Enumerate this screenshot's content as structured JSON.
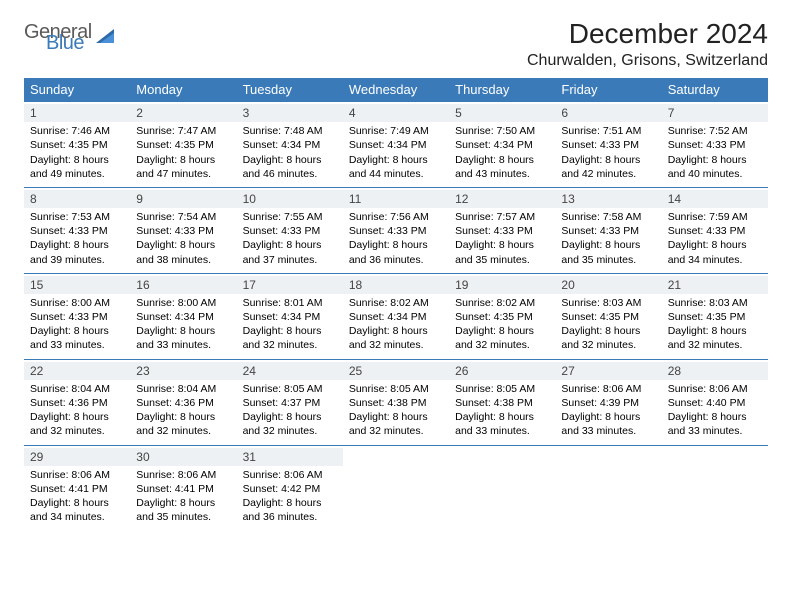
{
  "logo": {
    "word1": "General",
    "word2": "Blue"
  },
  "title": "December 2024",
  "location": "Churwalden, Grisons, Switzerland",
  "colors": {
    "header_bg": "#3a7ab8",
    "header_text": "#ffffff",
    "daynum_bg": "#eef1f3",
    "rule": "#3a7ab8",
    "logo_gray": "#5a5a5a",
    "logo_blue": "#3a7ab8"
  },
  "day_headers": [
    "Sunday",
    "Monday",
    "Tuesday",
    "Wednesday",
    "Thursday",
    "Friday",
    "Saturday"
  ],
  "weeks": [
    [
      {
        "n": "1",
        "sunrise": "7:46 AM",
        "sunset": "4:35 PM",
        "dl1": "Daylight: 8 hours",
        "dl2": "and 49 minutes."
      },
      {
        "n": "2",
        "sunrise": "7:47 AM",
        "sunset": "4:35 PM",
        "dl1": "Daylight: 8 hours",
        "dl2": "and 47 minutes."
      },
      {
        "n": "3",
        "sunrise": "7:48 AM",
        "sunset": "4:34 PM",
        "dl1": "Daylight: 8 hours",
        "dl2": "and 46 minutes."
      },
      {
        "n": "4",
        "sunrise": "7:49 AM",
        "sunset": "4:34 PM",
        "dl1": "Daylight: 8 hours",
        "dl2": "and 44 minutes."
      },
      {
        "n": "5",
        "sunrise": "7:50 AM",
        "sunset": "4:34 PM",
        "dl1": "Daylight: 8 hours",
        "dl2": "and 43 minutes."
      },
      {
        "n": "6",
        "sunrise": "7:51 AM",
        "sunset": "4:33 PM",
        "dl1": "Daylight: 8 hours",
        "dl2": "and 42 minutes."
      },
      {
        "n": "7",
        "sunrise": "7:52 AM",
        "sunset": "4:33 PM",
        "dl1": "Daylight: 8 hours",
        "dl2": "and 40 minutes."
      }
    ],
    [
      {
        "n": "8",
        "sunrise": "7:53 AM",
        "sunset": "4:33 PM",
        "dl1": "Daylight: 8 hours",
        "dl2": "and 39 minutes."
      },
      {
        "n": "9",
        "sunrise": "7:54 AM",
        "sunset": "4:33 PM",
        "dl1": "Daylight: 8 hours",
        "dl2": "and 38 minutes."
      },
      {
        "n": "10",
        "sunrise": "7:55 AM",
        "sunset": "4:33 PM",
        "dl1": "Daylight: 8 hours",
        "dl2": "and 37 minutes."
      },
      {
        "n": "11",
        "sunrise": "7:56 AM",
        "sunset": "4:33 PM",
        "dl1": "Daylight: 8 hours",
        "dl2": "and 36 minutes."
      },
      {
        "n": "12",
        "sunrise": "7:57 AM",
        "sunset": "4:33 PM",
        "dl1": "Daylight: 8 hours",
        "dl2": "and 35 minutes."
      },
      {
        "n": "13",
        "sunrise": "7:58 AM",
        "sunset": "4:33 PM",
        "dl1": "Daylight: 8 hours",
        "dl2": "and 35 minutes."
      },
      {
        "n": "14",
        "sunrise": "7:59 AM",
        "sunset": "4:33 PM",
        "dl1": "Daylight: 8 hours",
        "dl2": "and 34 minutes."
      }
    ],
    [
      {
        "n": "15",
        "sunrise": "8:00 AM",
        "sunset": "4:33 PM",
        "dl1": "Daylight: 8 hours",
        "dl2": "and 33 minutes."
      },
      {
        "n": "16",
        "sunrise": "8:00 AM",
        "sunset": "4:34 PM",
        "dl1": "Daylight: 8 hours",
        "dl2": "and 33 minutes."
      },
      {
        "n": "17",
        "sunrise": "8:01 AM",
        "sunset": "4:34 PM",
        "dl1": "Daylight: 8 hours",
        "dl2": "and 32 minutes."
      },
      {
        "n": "18",
        "sunrise": "8:02 AM",
        "sunset": "4:34 PM",
        "dl1": "Daylight: 8 hours",
        "dl2": "and 32 minutes."
      },
      {
        "n": "19",
        "sunrise": "8:02 AM",
        "sunset": "4:35 PM",
        "dl1": "Daylight: 8 hours",
        "dl2": "and 32 minutes."
      },
      {
        "n": "20",
        "sunrise": "8:03 AM",
        "sunset": "4:35 PM",
        "dl1": "Daylight: 8 hours",
        "dl2": "and 32 minutes."
      },
      {
        "n": "21",
        "sunrise": "8:03 AM",
        "sunset": "4:35 PM",
        "dl1": "Daylight: 8 hours",
        "dl2": "and 32 minutes."
      }
    ],
    [
      {
        "n": "22",
        "sunrise": "8:04 AM",
        "sunset": "4:36 PM",
        "dl1": "Daylight: 8 hours",
        "dl2": "and 32 minutes."
      },
      {
        "n": "23",
        "sunrise": "8:04 AM",
        "sunset": "4:36 PM",
        "dl1": "Daylight: 8 hours",
        "dl2": "and 32 minutes."
      },
      {
        "n": "24",
        "sunrise": "8:05 AM",
        "sunset": "4:37 PM",
        "dl1": "Daylight: 8 hours",
        "dl2": "and 32 minutes."
      },
      {
        "n": "25",
        "sunrise": "8:05 AM",
        "sunset": "4:38 PM",
        "dl1": "Daylight: 8 hours",
        "dl2": "and 32 minutes."
      },
      {
        "n": "26",
        "sunrise": "8:05 AM",
        "sunset": "4:38 PM",
        "dl1": "Daylight: 8 hours",
        "dl2": "and 33 minutes."
      },
      {
        "n": "27",
        "sunrise": "8:06 AM",
        "sunset": "4:39 PM",
        "dl1": "Daylight: 8 hours",
        "dl2": "and 33 minutes."
      },
      {
        "n": "28",
        "sunrise": "8:06 AM",
        "sunset": "4:40 PM",
        "dl1": "Daylight: 8 hours",
        "dl2": "and 33 minutes."
      }
    ],
    [
      {
        "n": "29",
        "sunrise": "8:06 AM",
        "sunset": "4:41 PM",
        "dl1": "Daylight: 8 hours",
        "dl2": "and 34 minutes."
      },
      {
        "n": "30",
        "sunrise": "8:06 AM",
        "sunset": "4:41 PM",
        "dl1": "Daylight: 8 hours",
        "dl2": "and 35 minutes."
      },
      {
        "n": "31",
        "sunrise": "8:06 AM",
        "sunset": "4:42 PM",
        "dl1": "Daylight: 8 hours",
        "dl2": "and 36 minutes."
      },
      null,
      null,
      null,
      null
    ]
  ],
  "labels": {
    "sunrise": "Sunrise: ",
    "sunset": "Sunset: "
  }
}
